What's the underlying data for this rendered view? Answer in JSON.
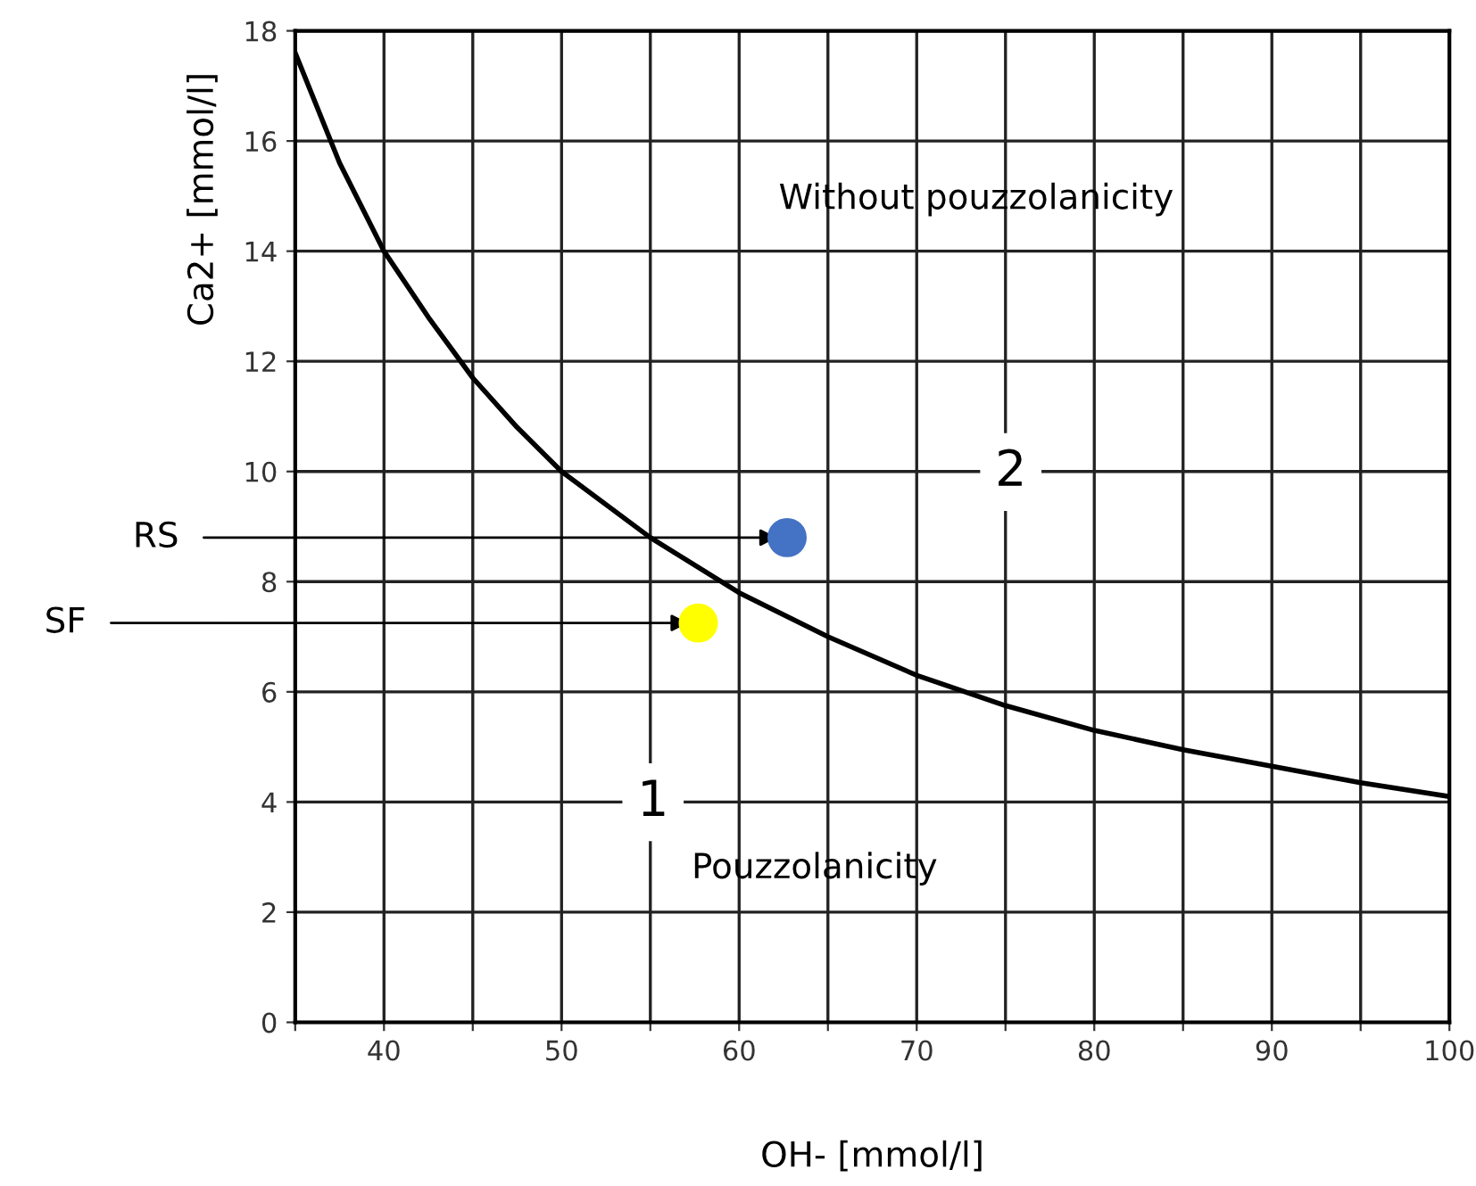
{
  "chart_data": {
    "type": "line",
    "xlabel": "OH- [mmol/l]",
    "ylabel": "Ca2+ [mmol/l]",
    "xlim": [
      35,
      100
    ],
    "ylim": [
      0,
      18
    ],
    "xticks": [
      {
        "value": 35,
        "label": null
      },
      40,
      {
        "value": 45,
        "label": null
      },
      50,
      {
        "value": 55,
        "label": null
      },
      60,
      {
        "value": 65,
        "label": null
      },
      70,
      {
        "value": 75,
        "label": null
      },
      80,
      {
        "value": 85,
        "label": null
      },
      90,
      {
        "value": 95,
        "label": null
      },
      100
    ],
    "yticks": [
      0,
      2,
      4,
      6,
      8,
      10,
      12,
      14,
      16,
      18
    ],
    "grid": true,
    "series": [
      {
        "color": "#000000",
        "x": [
          35,
          37.5,
          40,
          42.5,
          45,
          47.5,
          50,
          55,
          60,
          65,
          70,
          75,
          80,
          85,
          90,
          95,
          100
        ],
        "values": [
          17.6,
          15.6,
          14.0,
          12.8,
          11.7,
          10.8,
          10.0,
          8.8,
          7.8,
          7.0,
          6.3,
          5.75,
          5.3,
          4.95,
          4.65,
          4.35,
          4.1
        ]
      },
      {
        "type": "scatter",
        "color": "#4472c4",
        "x": [
          62.7
        ],
        "values": [
          8.8
        ]
      },
      {
        "type": "scatter",
        "color": "#ffff00",
        "x": [
          57.7
        ],
        "values": [
          7.25
        ]
      }
    ],
    "annotations": [
      {
        "text": "RS",
        "x": 62.7,
        "y": 8.8
      },
      {
        "text": "SF",
        "x": 57.7,
        "y": 7.25
      },
      "Without pouzzolanicity",
      "Pouzzolanicity",
      "1",
      "2"
    ]
  }
}
